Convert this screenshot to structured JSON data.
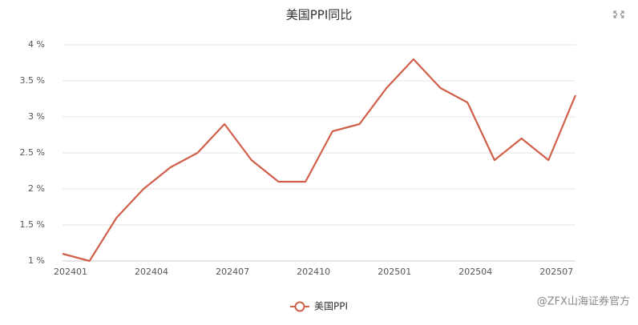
{
  "chart_data": {
    "type": "line",
    "title": "美国PPI同比",
    "categories": [
      "202401",
      null,
      null,
      "202404",
      null,
      null,
      "202407",
      null,
      null,
      "202410",
      null,
      null,
      "202501",
      null,
      null,
      "202504",
      null,
      null,
      "202507",
      null
    ],
    "series": [
      {
        "name": "美国PPI",
        "color": "#d0604a",
        "values": [
          1.1,
          1.0,
          1.6,
          2.0,
          2.3,
          2.5,
          2.9,
          2.4,
          2.1,
          2.1,
          2.8,
          2.9,
          3.4,
          3.8,
          3.4,
          3.2,
          2.4,
          2.7,
          2.4,
          3.3
        ]
      }
    ],
    "ylim": [
      1,
      4
    ],
    "yticks": [
      {
        "value": 1,
        "label": "1 %"
      },
      {
        "value": 1.5,
        "label": "1.5 %"
      },
      {
        "value": 2,
        "label": "2 %"
      },
      {
        "value": 2.5,
        "label": "2.5 %"
      },
      {
        "value": 3,
        "label": "3 %"
      },
      {
        "value": 3.5,
        "label": "3.5 %"
      },
      {
        "value": 4,
        "label": "4 %"
      }
    ],
    "grid": true,
    "watermark": "@ZFX山海证券官方"
  }
}
